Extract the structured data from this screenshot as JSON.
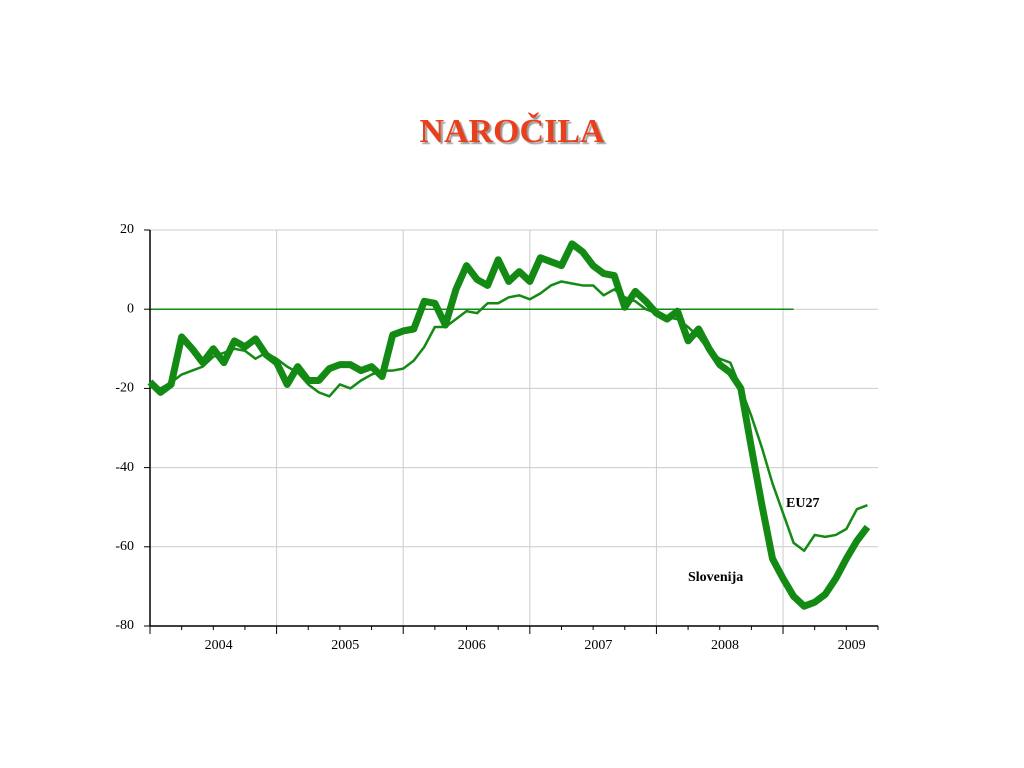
{
  "chart_data": {
    "type": "line",
    "title": "NAROČILA",
    "categories": [
      null,
      null,
      null,
      null,
      null,
      null,
      "2004",
      null,
      null,
      null,
      null,
      null,
      null,
      null,
      null,
      null,
      null,
      null,
      "2005",
      null,
      null,
      null,
      null,
      null,
      null,
      null,
      null,
      null,
      null,
      null,
      "2006",
      null,
      null,
      null,
      null,
      null,
      null,
      null,
      null,
      null,
      null,
      null,
      "2007",
      null,
      null,
      null,
      null,
      null,
      null,
      null,
      null,
      null,
      null,
      null,
      "2008",
      null,
      null,
      null,
      null,
      null,
      null,
      null,
      null,
      null,
      null,
      null,
      "2009",
      null,
      null
    ],
    "series": [
      {
        "name": "Slovenija",
        "color": "#138a13",
        "values": [
          -18.4,
          -21,
          -19,
          -7,
          -10,
          -13.5,
          -10,
          -13.5,
          -8,
          -9.5,
          -7.5,
          -11.5,
          -13.5,
          -19,
          -14.5,
          -18,
          -18,
          -15,
          -14,
          -14,
          -15.5,
          -14.5,
          -17,
          -6.5,
          -5.5,
          -5,
          2,
          1.5,
          -4,
          5,
          11,
          7.5,
          6,
          12.5,
          7,
          9.5,
          7,
          13,
          12,
          11,
          16.5,
          14.5,
          11,
          9,
          8.5,
          0.5,
          4.5,
          2,
          -1,
          -2.5,
          -0.5,
          -8,
          -5,
          -10,
          -14,
          -16,
          -20,
          -35,
          -49.5,
          -63,
          -68,
          -72.5,
          -75,
          -74,
          -72,
          -68,
          -63,
          -58.5,
          -55
        ]
      },
      {
        "name": "EU27",
        "color": "#138a13",
        "values": [
          -19,
          -20,
          -18.5,
          -16.5,
          -15.5,
          -14.5,
          -12,
          -11,
          -10,
          -10.5,
          -12.5,
          -11,
          -12.5,
          -14.5,
          -16,
          -19,
          -21,
          -22,
          -19,
          -20,
          -18,
          -16.5,
          -15.5,
          -15.5,
          -15,
          -13,
          -9.5,
          -4.5,
          -4.5,
          -2.5,
          -0.5,
          -1,
          1.5,
          1.5,
          3,
          3.5,
          2.5,
          4,
          6,
          7,
          6.5,
          6,
          6,
          3.5,
          5,
          3,
          2,
          0,
          -1,
          -2,
          -2.5,
          -4.5,
          -7,
          -10.5,
          -12.5,
          -13.5,
          -20,
          -27,
          -35,
          -44,
          -51.5,
          -59,
          -61,
          -57,
          -57.5,
          -57,
          -55.5,
          -50.5,
          -49.5
        ]
      }
    ],
    "ylim": [
      -80,
      20
    ],
    "yticks": [
      20,
      0,
      -20,
      -40,
      -60,
      -80
    ],
    "grid": true
  }
}
